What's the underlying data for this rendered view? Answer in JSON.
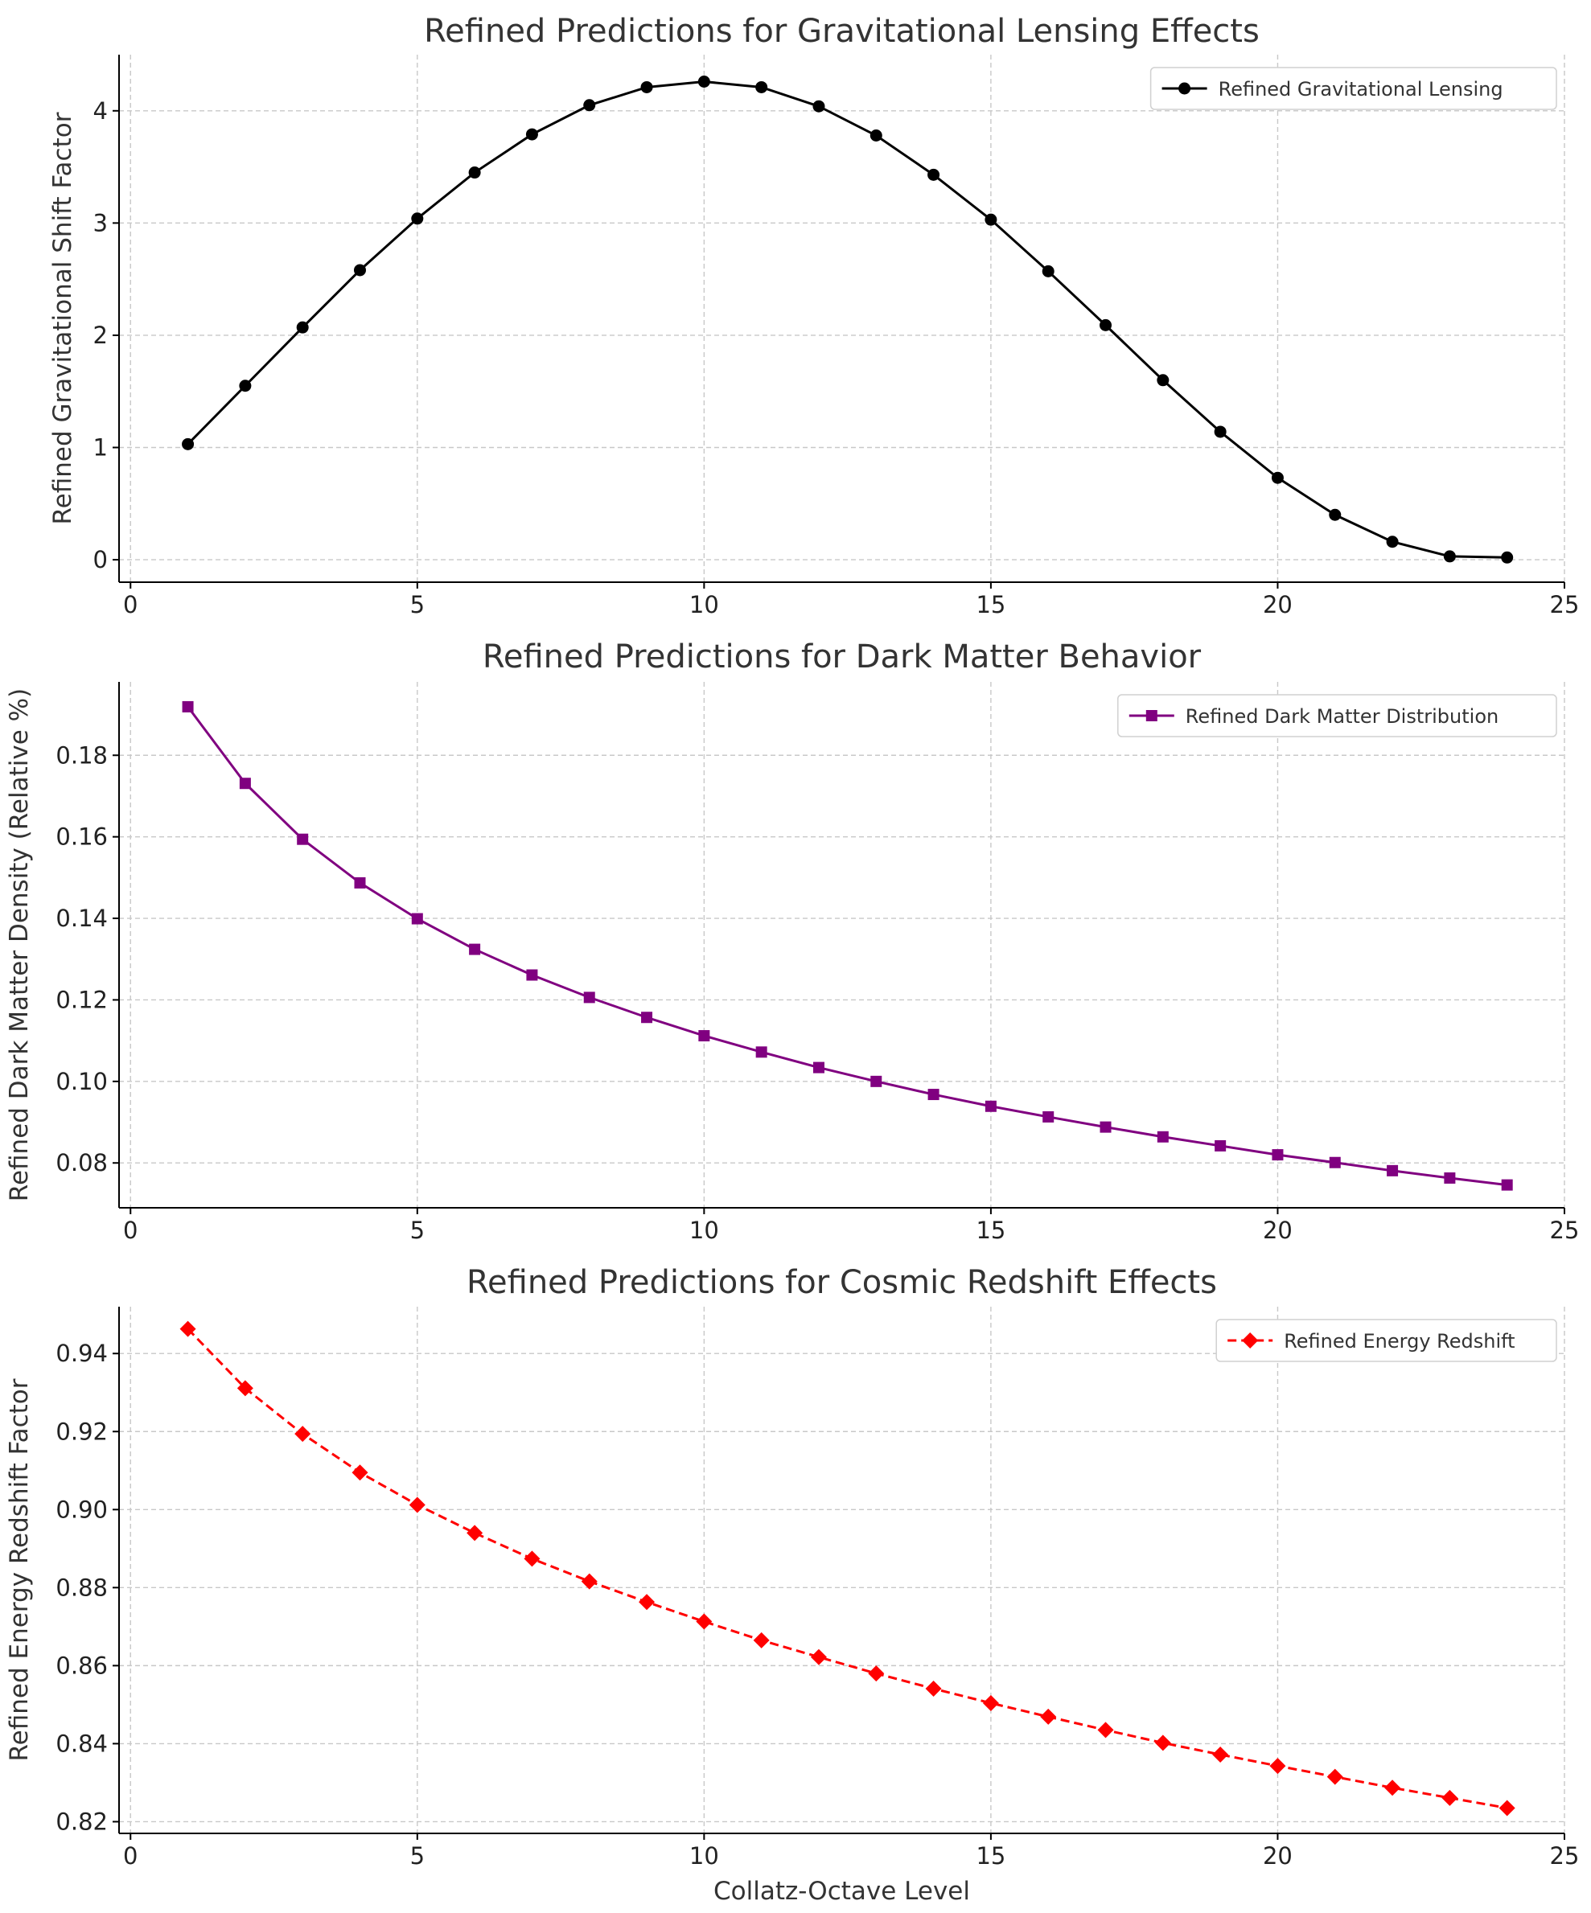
{
  "chart_data": [
    {
      "type": "line",
      "title": "Refined Predictions for Gravitational Lensing Effects",
      "xlabel": "",
      "ylabel": "Refined Gravitational Shift Factor",
      "xlim": [
        -0.2,
        25
      ],
      "ylim": [
        -0.2,
        4.5
      ],
      "xticks": [
        0,
        5,
        10,
        15,
        20,
        25
      ],
      "yticks": [
        0,
        1,
        2,
        3,
        4
      ],
      "ytick_labels": [
        "0",
        "1",
        "2",
        "3",
        "4"
      ],
      "grid": true,
      "legend_position": "top-right",
      "series": [
        {
          "name": "Refined Gravitational Lensing",
          "color": "#000000",
          "marker": "circle",
          "line_style": "solid",
          "x": [
            1,
            2,
            3,
            4,
            5,
            6,
            7,
            8,
            9,
            10,
            11,
            12,
            13,
            14,
            15,
            16,
            17,
            18,
            19,
            20,
            21,
            22,
            23,
            24
          ],
          "y": [
            1.03,
            1.55,
            2.07,
            2.58,
            3.04,
            3.45,
            3.79,
            4.05,
            4.21,
            4.26,
            4.21,
            4.04,
            3.78,
            3.43,
            3.03,
            2.57,
            2.09,
            1.6,
            1.14,
            0.73,
            0.4,
            0.16,
            0.03,
            0.02
          ]
        }
      ]
    },
    {
      "type": "line",
      "title": "Refined Predictions for Dark Matter Behavior",
      "xlabel": "",
      "ylabel": "Refined Dark Matter Density (Relative %)",
      "xlim": [
        -0.2,
        25
      ],
      "ylim": [
        0.069,
        0.198
      ],
      "xticks": [
        0,
        5,
        10,
        15,
        20,
        25
      ],
      "yticks": [
        0.08,
        0.1,
        0.12,
        0.14,
        0.16,
        0.18
      ],
      "ytick_labels": [
        "0.08",
        "0.10",
        "0.12",
        "0.14",
        "0.16",
        "0.18"
      ],
      "grid": true,
      "legend_position": "top-right",
      "series": [
        {
          "name": "Refined Dark Matter Distribution",
          "color": "#800080",
          "marker": "square",
          "line_style": "solid",
          "x": [
            1,
            2,
            3,
            4,
            5,
            6,
            7,
            8,
            9,
            10,
            11,
            12,
            13,
            14,
            15,
            16,
            17,
            18,
            19,
            20,
            21,
            22,
            23,
            24
          ],
          "y": [
            0.1919,
            0.1731,
            0.1594,
            0.1487,
            0.1399,
            0.1324,
            0.1261,
            0.1206,
            0.1157,
            0.1112,
            0.1072,
            0.1034,
            0.1,
            0.0968,
            0.0939,
            0.0913,
            0.0888,
            0.0864,
            0.0842,
            0.082,
            0.0801,
            0.0781,
            0.0763,
            0.0746
          ]
        }
      ]
    },
    {
      "type": "line",
      "title": "Refined Predictions for Cosmic Redshift Effects",
      "xlabel": "Collatz-Octave Level",
      "ylabel": "Refined Energy Redshift Factor",
      "xlim": [
        -0.2,
        25
      ],
      "ylim": [
        0.817,
        0.952
      ],
      "xticks": [
        0,
        5,
        10,
        15,
        20,
        25
      ],
      "yticks": [
        0.82,
        0.84,
        0.86,
        0.88,
        0.9,
        0.92,
        0.94
      ],
      "ytick_labels": [
        "0.82",
        "0.84",
        "0.86",
        "0.88",
        "0.90",
        "0.92",
        "0.94"
      ],
      "grid": true,
      "legend_position": "top-right",
      "series": [
        {
          "name": "Refined Energy Redshift",
          "color": "#ff0000",
          "marker": "diamond",
          "line_style": "dashed",
          "x": [
            1,
            2,
            3,
            4,
            5,
            6,
            7,
            8,
            9,
            10,
            11,
            12,
            13,
            14,
            15,
            16,
            17,
            18,
            19,
            20,
            21,
            22,
            23,
            24
          ],
          "y": [
            0.9463,
            0.9311,
            0.9194,
            0.9095,
            0.9012,
            0.894,
            0.8874,
            0.8816,
            0.8763,
            0.8713,
            0.8665,
            0.8622,
            0.858,
            0.8541,
            0.8504,
            0.8469,
            0.8435,
            0.8402,
            0.8372,
            0.8343,
            0.8315,
            0.8287,
            0.8261,
            0.8235
          ]
        }
      ]
    }
  ]
}
